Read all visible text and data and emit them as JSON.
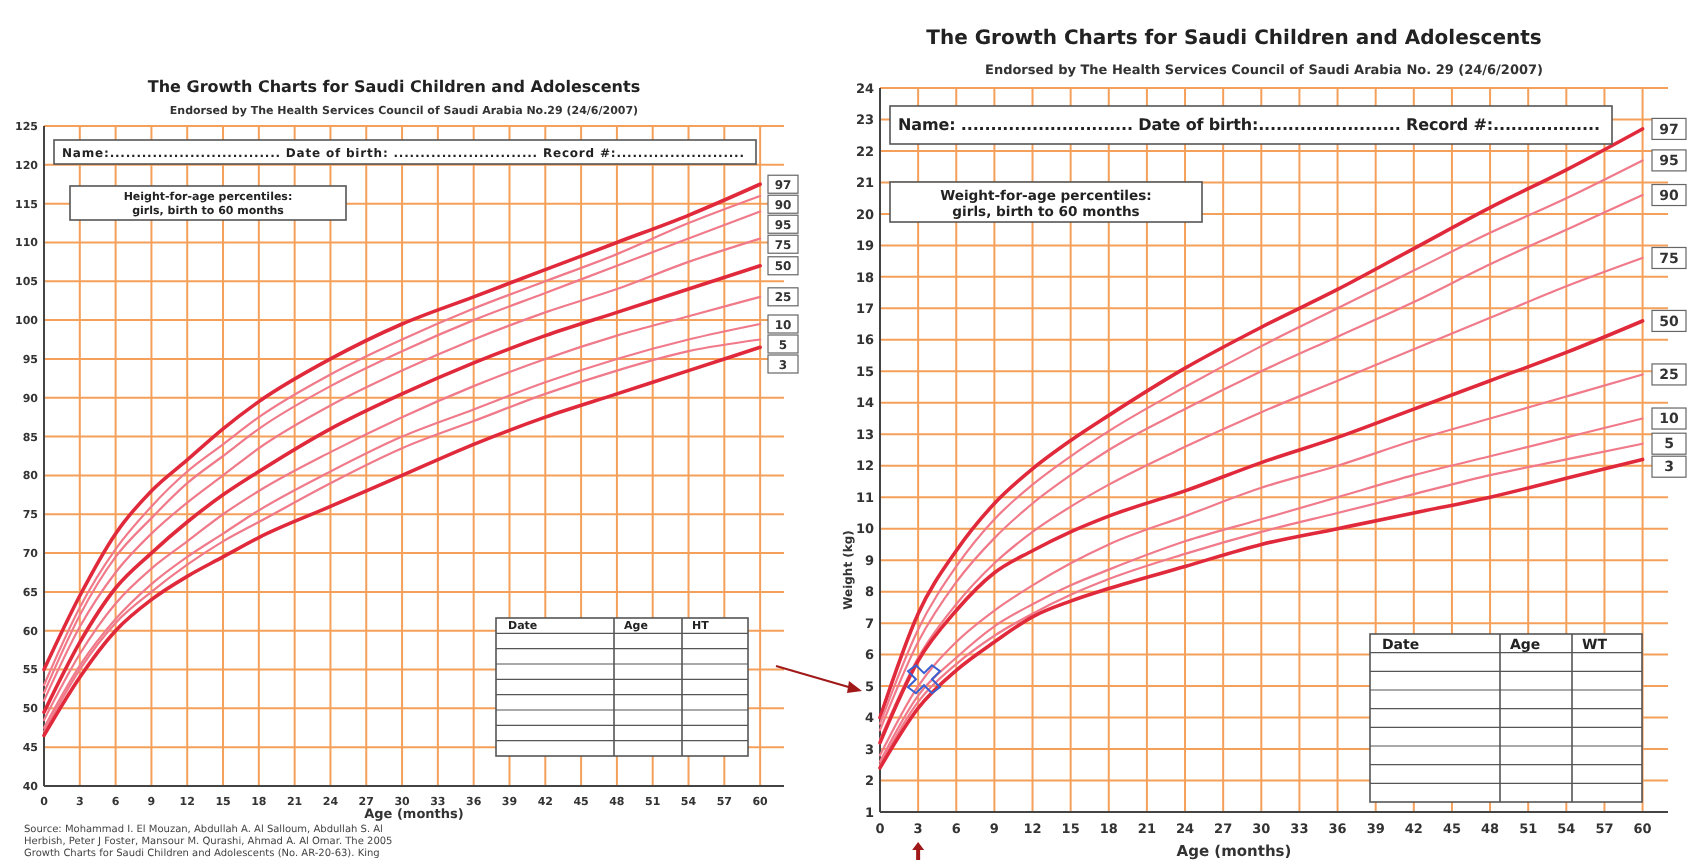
{
  "chart_data": [
    {
      "type": "line",
      "title": "The Growth Charts for Saudi Children and Adolescents",
      "subtitle": "Endorsed by The Health Services Council of Saudi Arabia No.29 (24/6/2007)",
      "xlabel": "Age (months)",
      "x": [
        0,
        3,
        6,
        9,
        12,
        15,
        18,
        24,
        30,
        36,
        42,
        48,
        54,
        60
      ],
      "xlim": [
        0,
        62
      ],
      "xticks": [
        0,
        3,
        6,
        9,
        12,
        15,
        18,
        21,
        24,
        27,
        30,
        33,
        36,
        39,
        42,
        45,
        48,
        51,
        54,
        57,
        60
      ],
      "ylim": [
        40,
        125
      ],
      "yticks": [
        40,
        45,
        50,
        55,
        60,
        65,
        70,
        75,
        80,
        85,
        90,
        95,
        100,
        105,
        110,
        115,
        120,
        125
      ],
      "grid": true,
      "series": [
        {
          "name": "97",
          "color": "#e02a3c",
          "values": [
            55,
            64.5,
            72.5,
            78,
            82,
            86,
            89.5,
            95,
            99.5,
            103,
            106.5,
            110,
            113.5,
            117.5
          ]
        },
        {
          "name": "90",
          "color": "#f07a8a",
          "values": [
            53,
            63,
            70.5,
            76,
            80.5,
            84,
            87.5,
            93,
            97.5,
            101.5,
            105,
            108.5,
            112.5,
            116
          ]
        },
        {
          "name": "95",
          "color": "#f07a8a",
          "values": [
            52,
            62,
            69.5,
            74.5,
            79,
            82.5,
            86,
            91.5,
            96,
            100,
            103.5,
            107,
            110.5,
            114
          ]
        },
        {
          "name": "75",
          "color": "#f07a8a",
          "values": [
            51,
            60.5,
            67.5,
            72.5,
            76.5,
            80,
            83.5,
            89,
            93.5,
            97.5,
            101,
            104,
            107.5,
            110.5
          ]
        },
        {
          "name": "50",
          "color": "#e02a3c",
          "values": [
            49.5,
            58.5,
            65.5,
            70,
            74,
            77.5,
            80.5,
            86,
            90.5,
            94.5,
            98,
            101,
            104,
            107
          ]
        },
        {
          "name": "25",
          "color": "#f07a8a",
          "values": [
            48.5,
            57,
            63.5,
            68,
            71.5,
            75,
            78,
            83,
            87.5,
            91.5,
            95,
            98,
            100.5,
            103
          ]
        },
        {
          "name": "10",
          "color": "#f07a8a",
          "values": [
            47.5,
            55.5,
            61.5,
            66,
            69.5,
            72.5,
            75.5,
            80.5,
            85,
            88.5,
            92,
            95,
            97.5,
            99.5
          ]
        },
        {
          "name": "5",
          "color": "#f07a8a",
          "values": [
            47,
            55,
            61,
            65,
            68.5,
            71.5,
            74,
            79,
            83.5,
            87,
            90.5,
            93.5,
            96,
            97.5
          ]
        },
        {
          "name": "3",
          "color": "#e02a3c",
          "values": [
            46.5,
            54,
            60,
            64,
            67,
            69.5,
            72,
            76,
            80,
            84,
            87.5,
            90.5,
            93.5,
            96.5
          ]
        }
      ],
      "annotations": [
        "Name:................................ Date of birth: ........................... Record #:........................",
        "Height-for-age percentiles:\ngirls, birth to 60 months",
        "Date",
        "Age",
        "HT",
        "Source: Mohammad I. El Mouzan, Abdullah A. Al Salloum, Abdullah S. Al\nHerbish, Peter J Foster, Mansour M. Qurashi, Ahmad A. Al Omar. The 2005\nGrowth Charts for Saudi Children and Adolescents (No. AR-20-63). King"
      ]
    },
    {
      "type": "line",
      "title": "The Growth Charts for Saudi Children and Adolescents",
      "subtitle": "Endorsed by The Health Services Council of Saudi Arabia No. 29 (24/6/2007)",
      "xlabel": "Age (months)",
      "ylabel": "Weight (kg)",
      "x": [
        0,
        3,
        6,
        9,
        12,
        15,
        18,
        24,
        30,
        36,
        42,
        48,
        54,
        60
      ],
      "xlim": [
        0,
        62
      ],
      "xticks": [
        0,
        3,
        6,
        9,
        12,
        15,
        18,
        21,
        24,
        27,
        30,
        33,
        36,
        39,
        42,
        45,
        48,
        51,
        54,
        57,
        60
      ],
      "ylim": [
        1,
        24
      ],
      "yticks": [
        1,
        2,
        3,
        4,
        5,
        6,
        7,
        8,
        9,
        10,
        11,
        12,
        13,
        14,
        15,
        16,
        17,
        18,
        19,
        20,
        21,
        22,
        23,
        24
      ],
      "grid": true,
      "series": [
        {
          "name": "97",
          "color": "#e02a3c",
          "values": [
            4,
            7.3,
            9.3,
            10.8,
            11.9,
            12.8,
            13.6,
            15.1,
            16.4,
            17.6,
            18.9,
            20.2,
            21.4,
            22.7
          ]
        },
        {
          "name": "95",
          "color": "#f07a8a",
          "values": [
            3.8,
            6.8,
            8.8,
            10.3,
            11.4,
            12.3,
            13.1,
            14.5,
            15.8,
            17,
            18.2,
            19.4,
            20.5,
            21.7
          ]
        },
        {
          "name": "90",
          "color": "#f07a8a",
          "values": [
            3.6,
            6.4,
            8.3,
            9.7,
            10.8,
            11.7,
            12.5,
            13.8,
            15,
            16.1,
            17.2,
            18.4,
            19.5,
            20.6
          ]
        },
        {
          "name": "75",
          "color": "#f07a8a",
          "values": [
            3.3,
            5.9,
            7.6,
            8.9,
            9.9,
            10.7,
            11.4,
            12.6,
            13.7,
            14.7,
            15.7,
            16.7,
            17.7,
            18.6
          ]
        },
        {
          "name": "50",
          "color": "#e02a3c",
          "values": [
            3.2,
            5.8,
            7.4,
            8.6,
            9.3,
            9.9,
            10.4,
            11.2,
            12.1,
            12.9,
            13.8,
            14.7,
            15.6,
            16.6
          ]
        },
        {
          "name": "25",
          "color": "#f07a8a",
          "values": [
            2.8,
            5,
            6.4,
            7.4,
            8.2,
            8.9,
            9.5,
            10.4,
            11.3,
            12,
            12.8,
            13.5,
            14.2,
            14.9
          ]
        },
        {
          "name": "10",
          "color": "#f07a8a",
          "values": [
            2.6,
            4.7,
            5.9,
            6.9,
            7.6,
            8.2,
            8.7,
            9.6,
            10.3,
            11,
            11.7,
            12.3,
            12.9,
            13.5
          ]
        },
        {
          "name": "5",
          "color": "#f07a8a",
          "values": [
            2.5,
            4.5,
            5.7,
            6.6,
            7.3,
            7.9,
            8.4,
            9.2,
            9.9,
            10.5,
            11.1,
            11.7,
            12.2,
            12.7
          ]
        },
        {
          "name": "3",
          "color": "#e02a3c",
          "values": [
            2.4,
            4.3,
            5.5,
            6.4,
            7.2,
            7.7,
            8.1,
            8.8,
            9.5,
            10,
            10.5,
            11,
            11.6,
            12.2
          ]
        }
      ],
      "annotations": [
        "Name: ............................. Date of birth:........................ Record #:..................",
        "Weight-for-age percentiles:\ngirls, birth to 60 months",
        "Date",
        "Age",
        "WT"
      ]
    }
  ]
}
